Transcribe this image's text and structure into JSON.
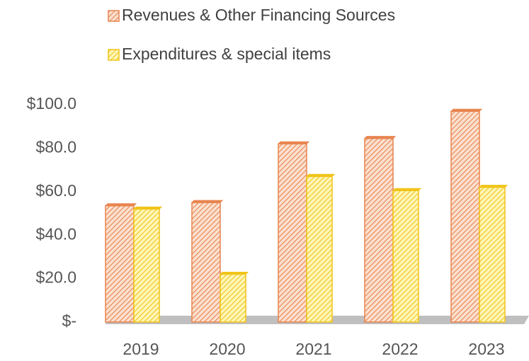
{
  "chart_data": {
    "type": "bar",
    "categories": [
      "2019",
      "2020",
      "2021",
      "2022",
      "2023"
    ],
    "series": [
      {
        "name": "Revenues & Other Financing Sources",
        "color": "#e8844f",
        "values": [
          53.5,
          55,
          82,
          84.5,
          97
        ]
      },
      {
        "name": "Expenditures & special items",
        "color": "#f0c419",
        "values": [
          52,
          22,
          67,
          60.5,
          62
        ]
      }
    ],
    "ylim": [
      0,
      100
    ],
    "yticks": [
      {
        "value": 0,
        "label": "$-"
      },
      {
        "value": 20,
        "label": "$20.0"
      },
      {
        "value": 40,
        "label": "$40.0"
      },
      {
        "value": 60,
        "label": "$60.0"
      },
      {
        "value": 80,
        "label": "$80.0"
      },
      {
        "value": 100,
        "label": "$100.0"
      }
    ],
    "legend": "top"
  }
}
